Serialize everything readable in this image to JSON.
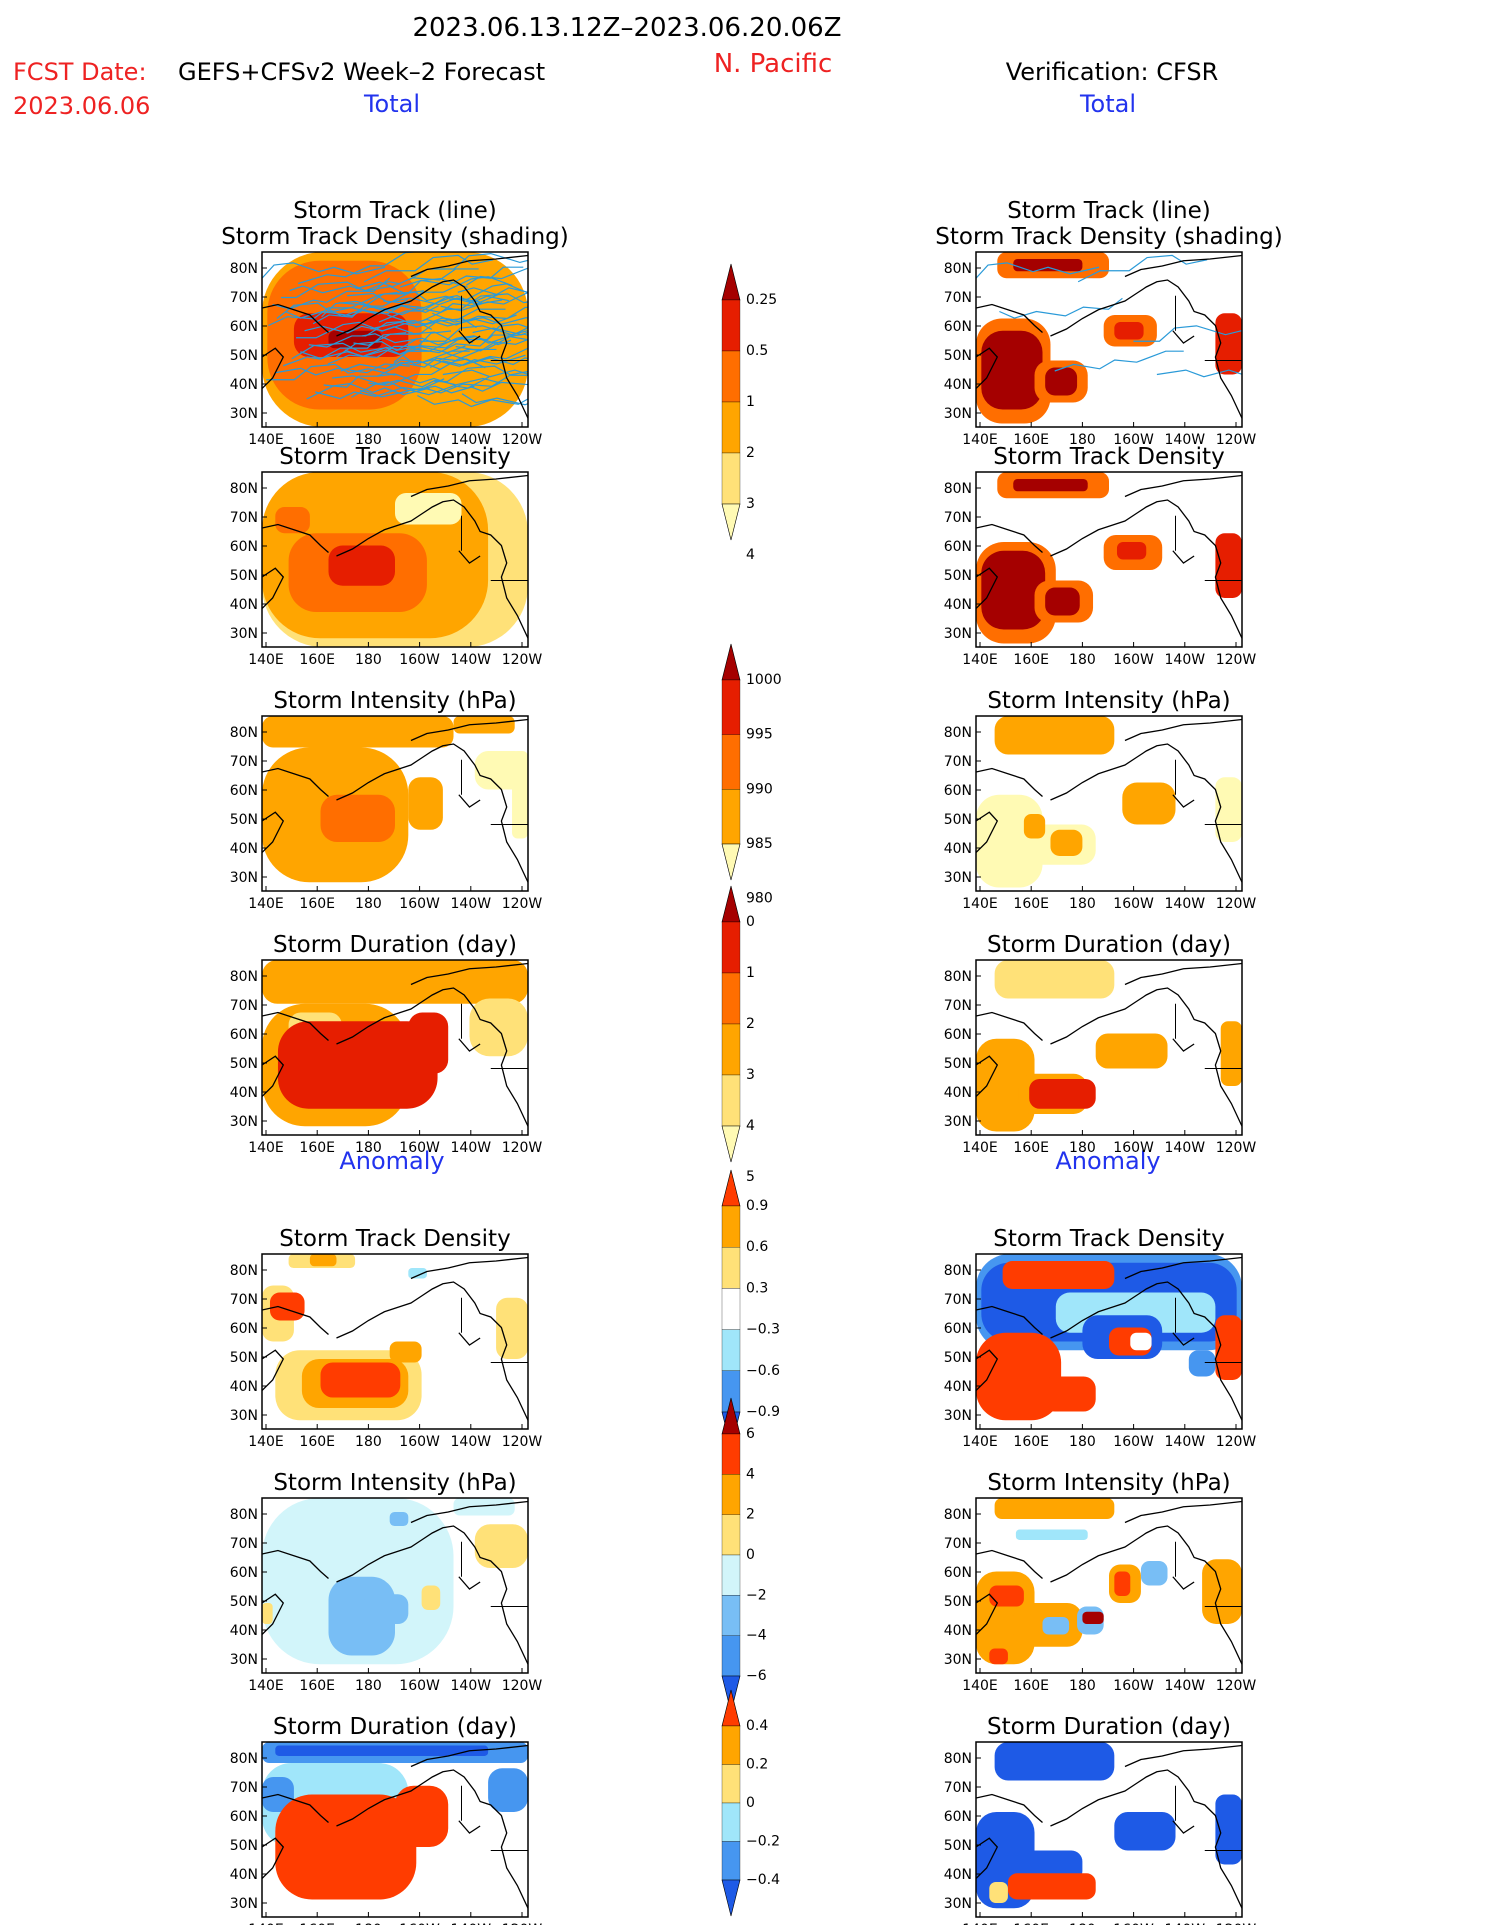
{
  "header": {
    "date_range": "2023.06.13.12Z–2023.06.20.06Z",
    "region": "N. Pacific",
    "fcst_label": "FCST Date:",
    "fcst_date": "2023.06.06",
    "forecast_name": "GEFS+CFSv2 Week–2 Forecast",
    "verification": "Verification: CFSR",
    "total_left": "Total",
    "total_right": "Total",
    "anomaly_left": "Anomaly",
    "anomaly_right": "Anomaly"
  },
  "colors": {
    "black": "#000000",
    "red_text": "#ee2222",
    "blue_text": "#2233ee",
    "track_line": "#2a9ad8",
    "cb_yellow1": "#fffab4",
    "cb_yellow2": "#ffe178",
    "cb_orange1": "#ffa500",
    "cb_orange2": "#ff6e00",
    "cb_red": "#e61e00",
    "cb_darkred": "#a50000",
    "cb_lightblue1": "#d2f5fa",
    "cb_lightblue2": "#a0e6fa",
    "cb_blue1": "#78bef5",
    "cb_blue2": "#4696f0",
    "cb_blue3": "#1e5ae6"
  },
  "map_axes": {
    "x_ticks": [
      "140E",
      "160E",
      "180",
      "160W",
      "140W",
      "120W"
    ],
    "y_ticks": [
      "80N",
      "70N",
      "60N",
      "50N",
      "40N",
      "30N"
    ]
  },
  "panels": {
    "row1_title_line1": "Storm Track (line)",
    "row1_title_line2": "Storm Track Density (shading)",
    "density": "Storm Track Density",
    "intensity": "Storm Intensity (hPa)",
    "duration": "Storm Duration (day)"
  },
  "chart_data": [
    {
      "type": "heatmap",
      "title": "Storm Track Density",
      "colorbar_labels": [
        "0.25",
        "0.5",
        "1",
        "2",
        "3",
        "4"
      ],
      "colorbar_colors": [
        "#fffab4",
        "#ffe178",
        "#ffa500",
        "#ff6e00",
        "#e61e00",
        "#a50000"
      ]
    },
    {
      "type": "heatmap",
      "title": "Storm Intensity (hPa)",
      "colorbar_labels": [
        "1000",
        "995",
        "990",
        "985",
        "980"
      ],
      "colorbar_colors": [
        "#fffab4",
        "#ffa500",
        "#ff6e00",
        "#e61e00",
        "#a50000"
      ]
    },
    {
      "type": "heatmap",
      "title": "Storm Duration (day)",
      "colorbar_labels": [
        "0",
        "1",
        "2",
        "3",
        "4",
        "5"
      ],
      "colorbar_colors": [
        "#fffab4",
        "#ffe178",
        "#ffa500",
        "#ff6e00",
        "#e61e00",
        "#a50000"
      ]
    },
    {
      "type": "heatmap",
      "title": "Storm Track Density Anomaly",
      "colorbar_labels": [
        "0.9",
        "0.6",
        "0.3",
        "−0.3",
        "−0.6",
        "−0.9"
      ],
      "colorbar_colors": [
        "#1e5ae6",
        "#4696f0",
        "#a0e6fa",
        "#ffffff",
        "#ffe178",
        "#ffa500",
        "#ff3c00"
      ]
    },
    {
      "type": "heatmap",
      "title": "Storm Intensity Anomaly (hPa)",
      "colorbar_labels": [
        "6",
        "4",
        "2",
        "0",
        "−2",
        "−4",
        "−6"
      ],
      "colorbar_colors": [
        "#1e5ae6",
        "#4696f0",
        "#78bef5",
        "#d2f5fa",
        "#ffe178",
        "#ffa500",
        "#ff3c00",
        "#a50000"
      ]
    },
    {
      "type": "heatmap",
      "title": "Storm Duration Anomaly (day)",
      "colorbar_labels": [
        "0.4",
        "0.2",
        "0",
        "−0.2",
        "−0.4"
      ],
      "colorbar_colors": [
        "#1e5ae6",
        "#4696f0",
        "#a0e6fa",
        "#ffe178",
        "#ffa500",
        "#ff3c00"
      ]
    }
  ]
}
